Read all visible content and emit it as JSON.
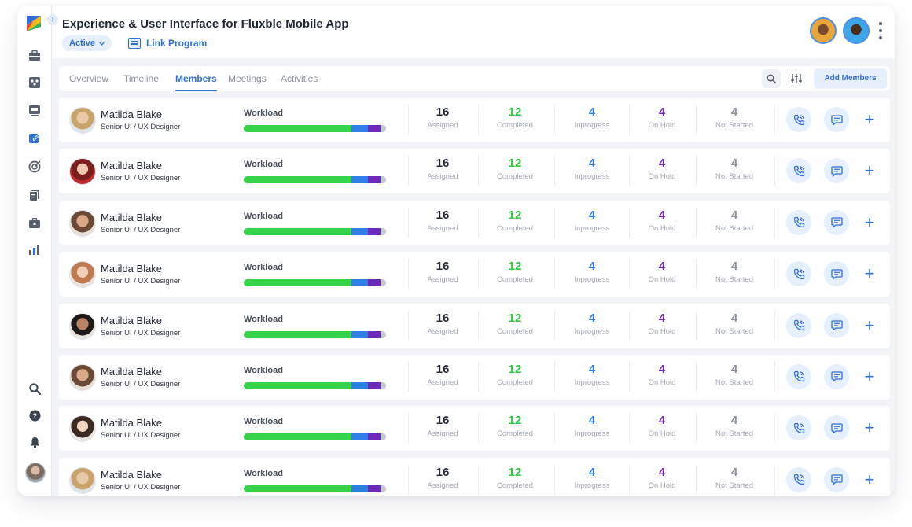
{
  "project": {
    "title": "Experience & User Interface for Fluxble Mobile App",
    "status": "Active",
    "link_label": "Link Program"
  },
  "tabs": [
    {
      "label": "Overview"
    },
    {
      "label": "Timeline"
    },
    {
      "label": "Members",
      "active": true
    },
    {
      "label": "Meetings"
    },
    {
      "label": "Activities"
    }
  ],
  "toolbar": {
    "add_members": "Add Members"
  },
  "colors": {
    "accent": "#2f6fd6",
    "completed": "#2fc73f",
    "inprogress": "#2f7fe6",
    "onhold": "#6b2bb8",
    "notstarted": "#8a8f99"
  },
  "sidebar_icons": [
    "briefcase-icon",
    "team-icon",
    "board-icon",
    "edit-icon",
    "target-icon",
    "documents-icon",
    "portfolio-icon",
    "chart-icon"
  ],
  "members": [
    {
      "name": "Matilda Blake",
      "role": "Senior UI / UX Designer",
      "workload_label": "Workload",
      "assigned": "16",
      "completed": "12",
      "inprogress": "4",
      "onhold": "4",
      "notstarted": "4"
    },
    {
      "name": "Matilda Blake",
      "role": "Senior UI / UX Designer",
      "workload_label": "Workload",
      "assigned": "16",
      "completed": "12",
      "inprogress": "4",
      "onhold": "4",
      "notstarted": "4"
    },
    {
      "name": "Matilda Blake",
      "role": "Senior UI / UX Designer",
      "workload_label": "Workload",
      "assigned": "16",
      "completed": "12",
      "inprogress": "4",
      "onhold": "4",
      "notstarted": "4"
    },
    {
      "name": "Matilda Blake",
      "role": "Senior UI / UX Designer",
      "workload_label": "Workload",
      "assigned": "16",
      "completed": "12",
      "inprogress": "4",
      "onhold": "4",
      "notstarted": "4"
    },
    {
      "name": "Matilda Blake",
      "role": "Senior UI / UX Designer",
      "workload_label": "Workload",
      "assigned": "16",
      "completed": "12",
      "inprogress": "4",
      "onhold": "4",
      "notstarted": "4"
    },
    {
      "name": "Matilda Blake",
      "role": "Senior UI / UX Designer",
      "workload_label": "Workload",
      "assigned": "16",
      "completed": "12",
      "inprogress": "4",
      "onhold": "4",
      "notstarted": "4"
    },
    {
      "name": "Matilda Blake",
      "role": "Senior UI / UX Designer",
      "workload_label": "Workload",
      "assigned": "16",
      "completed": "12",
      "inprogress": "4",
      "onhold": "4",
      "notstarted": "4"
    },
    {
      "name": "Matilda Blake",
      "role": "Senior UI / UX Designer",
      "workload_label": "Workload",
      "assigned": "16",
      "completed": "12",
      "inprogress": "4",
      "onhold": "4",
      "notstarted": "4"
    }
  ],
  "stat_labels": {
    "assigned": "Assigned",
    "completed": "Completed",
    "inprogress": "Inprogress",
    "onhold": "On Hold",
    "notstarted": "Not Started"
  },
  "workload_segments": {
    "completed": 0.755,
    "inprogress": 0.12,
    "onhold": 0.085,
    "notstarted": 0.04
  }
}
